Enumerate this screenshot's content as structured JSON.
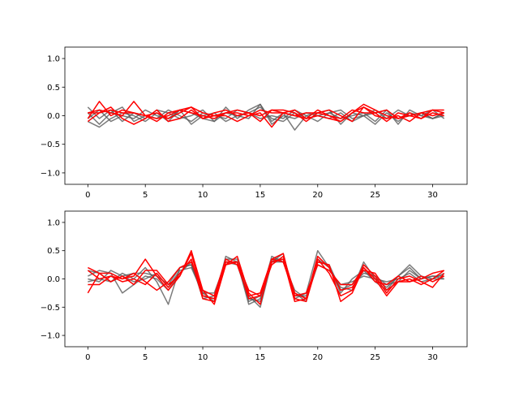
{
  "colors": {
    "gray": "#5a5a5a",
    "red": "#ff0000"
  },
  "chart_data": [
    {
      "type": "line",
      "xlim": [
        -2,
        33
      ],
      "ylim": [
        -1.2,
        1.2
      ],
      "x_ticks": [
        0,
        5,
        10,
        15,
        20,
        25,
        30
      ],
      "y_ticks": [
        -1.0,
        -0.5,
        0.0,
        0.5,
        1.0
      ],
      "y_tick_labels": [
        "−1.0",
        "−0.5",
        "0.0",
        "0.5",
        "1.0"
      ],
      "x": [
        0,
        1,
        2,
        3,
        4,
        5,
        6,
        7,
        8,
        9,
        10,
        11,
        12,
        13,
        14,
        15,
        16,
        17,
        18,
        19,
        20,
        21,
        22,
        23,
        24,
        25,
        26,
        27,
        28,
        29,
        30,
        31
      ],
      "series": [
        {
          "color": "gray",
          "values": [
            0.15,
            -0.05,
            0.1,
            -0.1,
            0.05,
            -0.05,
            0.1,
            0.05,
            -0.05,
            0.0,
            0.1,
            -0.1,
            0.15,
            -0.05,
            0.1,
            0.2,
            -0.1,
            0.05,
            -0.25,
            0.0,
            0.05,
            0.1,
            -0.15,
            0.05,
            0.0,
            0.1,
            -0.05,
            0.1,
            0.0,
            0.05,
            -0.05,
            0.0
          ]
        },
        {
          "color": "gray",
          "values": [
            0.05,
            -0.15,
            0.05,
            0.15,
            -0.1,
            0.0,
            -0.05,
            0.1,
            0.0,
            -0.1,
            0.05,
            0.0,
            -0.05,
            0.1,
            0.05,
            0.15,
            -0.05,
            -0.1,
            0.05,
            -0.05,
            0.0,
            0.05,
            0.1,
            -0.05,
            0.0,
            -0.15,
            0.05,
            -0.1,
            0.05,
            0.0,
            0.1,
            -0.05
          ]
        },
        {
          "color": "gray",
          "values": [
            -0.05,
            0.1,
            -0.1,
            0.0,
            -0.05,
            0.1,
            0.0,
            -0.05,
            0.1,
            -0.15,
            0.0,
            0.05,
            -0.1,
            0.0,
            0.05,
            -0.05,
            0.0,
            -0.05,
            0.1,
            0.0,
            -0.1,
            0.05,
            -0.05,
            0.0,
            0.05,
            -0.1,
            0.1,
            -0.05,
            0.0,
            0.05,
            -0.05,
            0.05
          ]
        },
        {
          "color": "gray",
          "values": [
            -0.1,
            -0.2,
            -0.05,
            0.05,
            0.0,
            -0.1,
            0.05,
            -0.1,
            0.1,
            0.05,
            -0.05,
            -0.1,
            0.05,
            0.0,
            -0.05,
            0.2,
            -0.15,
            0.0,
            -0.05,
            0.05,
            0.0,
            -0.05,
            0.05,
            -0.1,
            0.0,
            0.05,
            0.1,
            -0.15,
            0.1,
            0.0,
            -0.05,
            0.05
          ]
        },
        {
          "color": "red",
          "values": [
            -0.05,
            0.25,
            0.0,
            0.1,
            0.05,
            0.0,
            -0.1,
            0.05,
            0.1,
            0.15,
            -0.05,
            0.05,
            0.1,
            0.0,
            0.05,
            -0.1,
            0.1,
            0.05,
            0.0,
            -0.05,
            0.1,
            0.0,
            -0.1,
            0.05,
            0.2,
            0.1,
            0.0,
            -0.05,
            0.05,
            -0.05,
            0.1,
            0.05
          ]
        },
        {
          "color": "red",
          "values": [
            0.05,
            0.1,
            0.05,
            0.0,
            0.25,
            0.0,
            -0.05,
            0.0,
            0.1,
            0.05,
            0.0,
            -0.05,
            0.05,
            0.1,
            0.05,
            0.0,
            0.1,
            0.1,
            0.05,
            -0.1,
            0.05,
            0.1,
            0.0,
            -0.1,
            0.15,
            0.05,
            0.1,
            -0.05,
            0.0,
            0.05,
            0.0,
            0.05
          ]
        },
        {
          "color": "red",
          "values": [
            -0.1,
            0.05,
            0.15,
            -0.05,
            -0.15,
            -0.05,
            0.1,
            -0.1,
            -0.05,
            0.1,
            -0.05,
            0.0,
            0.0,
            -0.1,
            0.0,
            0.05,
            -0.2,
            0.05,
            0.1,
            -0.05,
            0.0,
            -0.05,
            -0.1,
            0.05,
            0.15,
            0.0,
            -0.05,
            0.0,
            -0.1,
            0.05,
            0.1,
            0.1
          ]
        },
        {
          "color": "red",
          "values": [
            0.05,
            0.05,
            0.1,
            0.05,
            0.05,
            0.0,
            0.05,
            -0.05,
            0.05,
            0.15,
            0.05,
            0.0,
            0.05,
            0.05,
            0.0,
            0.1,
            0.05,
            0.05,
            0.0,
            0.05,
            0.05,
            0.0,
            -0.05,
            0.1,
            0.05,
            0.05,
            -0.1,
            0.05,
            0.0,
            -0.05,
            0.05,
            0.0
          ]
        }
      ]
    },
    {
      "type": "line",
      "xlim": [
        -2,
        33
      ],
      "ylim": [
        -1.2,
        1.2
      ],
      "x_ticks": [
        0,
        5,
        10,
        15,
        20,
        25,
        30
      ],
      "y_ticks": [
        -1.0,
        -0.5,
        0.0,
        0.5,
        1.0
      ],
      "y_tick_labels": [
        "−1.0",
        "−0.5",
        "0.0",
        "0.5",
        "1.0"
      ],
      "x": [
        0,
        1,
        2,
        3,
        4,
        5,
        6,
        7,
        8,
        9,
        10,
        11,
        12,
        13,
        14,
        15,
        16,
        17,
        18,
        19,
        20,
        21,
        22,
        23,
        24,
        25,
        26,
        27,
        28,
        29,
        30,
        31
      ],
      "series": [
        {
          "color": "gray",
          "values": [
            0.15,
            0.1,
            -0.05,
            0.1,
            0.0,
            0.2,
            -0.05,
            -0.45,
            0.2,
            0.25,
            -0.25,
            -0.4,
            0.4,
            0.3,
            -0.45,
            -0.35,
            0.4,
            0.3,
            -0.25,
            -0.4,
            0.35,
            0.2,
            -0.15,
            -0.2,
            0.3,
            0.0,
            -0.15,
            0.05,
            0.2,
            0.0,
            0.05,
            0.05
          ]
        },
        {
          "color": "gray",
          "values": [
            0.05,
            0.15,
            0.1,
            -0.25,
            -0.1,
            0.05,
            0.0,
            -0.2,
            0.1,
            0.3,
            -0.35,
            -0.3,
            0.35,
            0.35,
            -0.3,
            -0.5,
            0.3,
            0.45,
            -0.35,
            -0.25,
            0.5,
            0.2,
            -0.25,
            0.0,
            0.15,
            -0.05,
            -0.2,
            0.05,
            0.25,
            0.05,
            0.0,
            0.1
          ]
        },
        {
          "color": "gray",
          "values": [
            0.0,
            -0.05,
            0.15,
            0.05,
            0.1,
            0.1,
            0.05,
            -0.1,
            0.2,
            0.25,
            -0.3,
            -0.35,
            0.3,
            0.25,
            -0.35,
            -0.4,
            0.35,
            0.35,
            -0.3,
            -0.3,
            0.3,
            0.25,
            -0.2,
            -0.1,
            0.1,
            0.05,
            -0.1,
            -0.05,
            0.15,
            0.0,
            0.05,
            0.0
          ]
        },
        {
          "color": "gray",
          "values": [
            -0.05,
            0.0,
            -0.05,
            0.05,
            -0.05,
            0.0,
            0.1,
            -0.15,
            0.15,
            0.2,
            -0.25,
            -0.25,
            0.3,
            0.3,
            -0.4,
            -0.3,
            0.3,
            0.3,
            -0.2,
            -0.35,
            0.25,
            0.15,
            -0.1,
            -0.05,
            0.05,
            0.0,
            -0.05,
            0.0,
            0.1,
            -0.05,
            0.0,
            0.0
          ]
        },
        {
          "color": "red",
          "values": [
            0.2,
            0.1,
            0.1,
            0.0,
            0.05,
            0.35,
            0.05,
            -0.2,
            0.05,
            0.5,
            -0.2,
            -0.45,
            0.25,
            0.4,
            -0.25,
            -0.45,
            0.35,
            0.45,
            -0.35,
            -0.4,
            0.3,
            0.25,
            -0.4,
            -0.25,
            0.2,
            0.0,
            -0.3,
            -0.05,
            0.0,
            -0.1,
            0.0,
            0.15
          ]
        },
        {
          "color": "red",
          "values": [
            -0.25,
            0.1,
            -0.05,
            0.05,
            -0.1,
            0.15,
            0.15,
            -0.1,
            0.05,
            0.45,
            -0.3,
            -0.35,
            0.3,
            0.3,
            -0.2,
            -0.3,
            0.3,
            0.35,
            -0.4,
            -0.35,
            0.35,
            0.1,
            -0.3,
            -0.2,
            0.25,
            0.05,
            -0.25,
            0.0,
            0.05,
            -0.05,
            -0.15,
            0.1
          ]
        },
        {
          "color": "red",
          "values": [
            0.15,
            0.0,
            0.05,
            -0.05,
            0.0,
            -0.1,
            0.1,
            -0.15,
            0.1,
            0.35,
            -0.35,
            -0.4,
            0.25,
            0.3,
            -0.35,
            -0.3,
            0.25,
            0.4,
            -0.25,
            -0.35,
            0.4,
            0.2,
            -0.2,
            -0.15,
            0.15,
            0.1,
            -0.2,
            -0.05,
            -0.05,
            0.05,
            -0.05,
            0.05
          ]
        },
        {
          "color": "red",
          "values": [
            -0.1,
            -0.1,
            0.05,
            0.0,
            0.1,
            -0.05,
            -0.2,
            -0.05,
            0.2,
            0.3,
            -0.2,
            -0.3,
            0.35,
            0.25,
            -0.3,
            -0.25,
            0.35,
            0.3,
            -0.3,
            -0.25,
            0.25,
            0.15,
            -0.1,
            -0.1,
            0.2,
            -0.05,
            -0.1,
            0.05,
            -0.05,
            0.0,
            0.1,
            0.15
          ]
        }
      ]
    }
  ]
}
